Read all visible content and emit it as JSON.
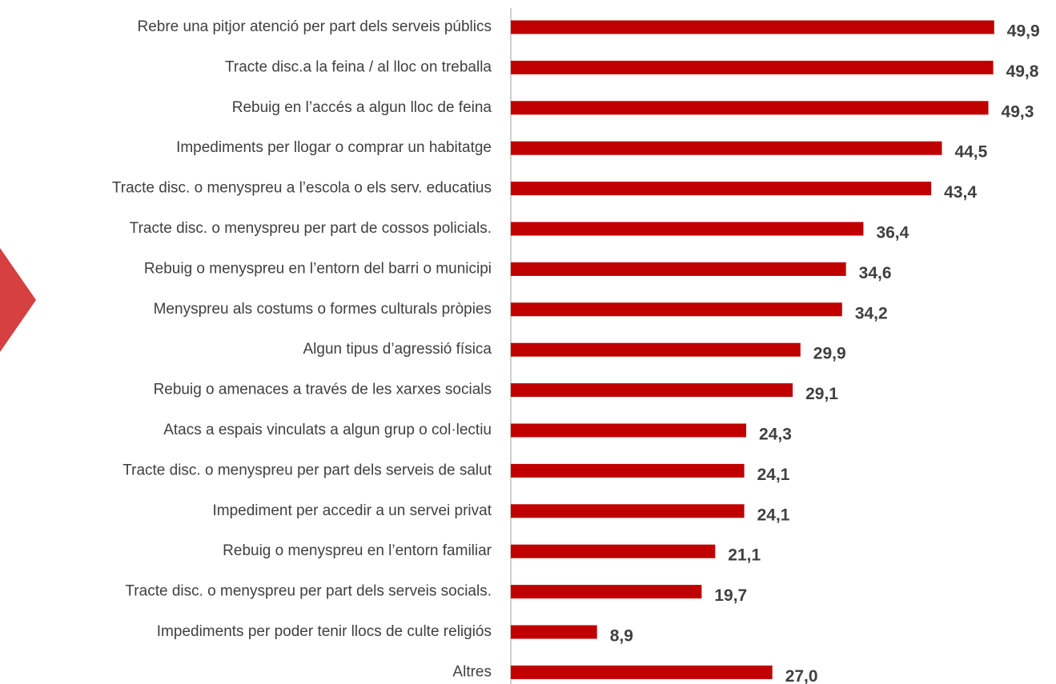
{
  "chart_data": {
    "type": "bar",
    "orientation": "horizontal",
    "color": "#c00000",
    "categories": [
      "Rebre una pitjor atenció per part dels serveis públics",
      "Tracte disc.a la feina / al lloc on treballa",
      "Rebuig en l’accés a algun lloc de feina",
      "Impediments per llogar o comprar un habitatge",
      "Tracte disc. o menyspreu a l’escola o els serv. educatius",
      "Tracte disc. o menyspreu per part de cossos policials.",
      "Rebuig o menyspreu en l’entorn del barri o municipi",
      "Menyspreu als costums o formes culturals pròpies",
      "Algun tipus d’agressió física",
      "Rebuig o amenaces a través de les xarxes socials",
      "Atacs a espais vinculats a algun grup o col·lectiu",
      "Tracte disc. o menyspreu per part dels serveis de salut",
      "Impediment per accedir a un servei privat",
      "Rebuig o menyspreu en l’entorn familiar",
      "Tracte disc. o menyspreu per part dels serveis socials.",
      "Impediments per poder tenir llocs de culte religiós",
      "Altres"
    ],
    "values": [
      49.9,
      49.8,
      49.3,
      44.5,
      43.4,
      36.4,
      34.6,
      34.2,
      29.9,
      29.1,
      24.3,
      24.1,
      24.1,
      21.1,
      19.7,
      8.9,
      27.0
    ],
    "value_labels": [
      "49,9",
      "49,8",
      "49,3",
      "44,5",
      "43,4",
      "36,4",
      "34,6",
      "34,2",
      "29,9",
      "29,1",
      "24,3",
      "24,1",
      "24,1",
      "21,1",
      "19,7",
      "8,9",
      "27,0"
    ],
    "xlim": [
      0,
      50
    ]
  }
}
